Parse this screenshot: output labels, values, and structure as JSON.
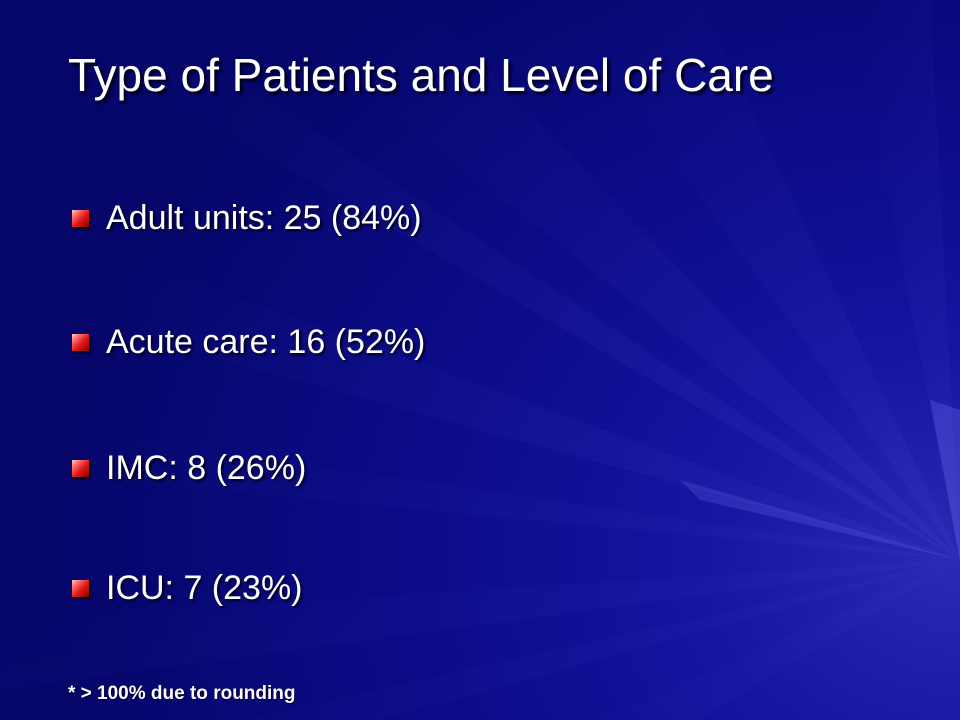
{
  "slide": {
    "title": "Type of Patients and Level of Care",
    "bullets": [
      {
        "text": "Adult units: 25 (84%)"
      },
      {
        "text": "Acute care: 16 (52%)"
      },
      {
        "text": "IMC: 8 (26%)"
      },
      {
        "text": "ICU: 7 (23%)"
      }
    ],
    "footnote": "* > 100% due to rounding",
    "colors": {
      "background": "#0c0c8a",
      "text": "#ffffff",
      "bullet_marker": "#e01818"
    },
    "icons": {
      "bullet_marker": "red-square-bullet-icon"
    }
  }
}
